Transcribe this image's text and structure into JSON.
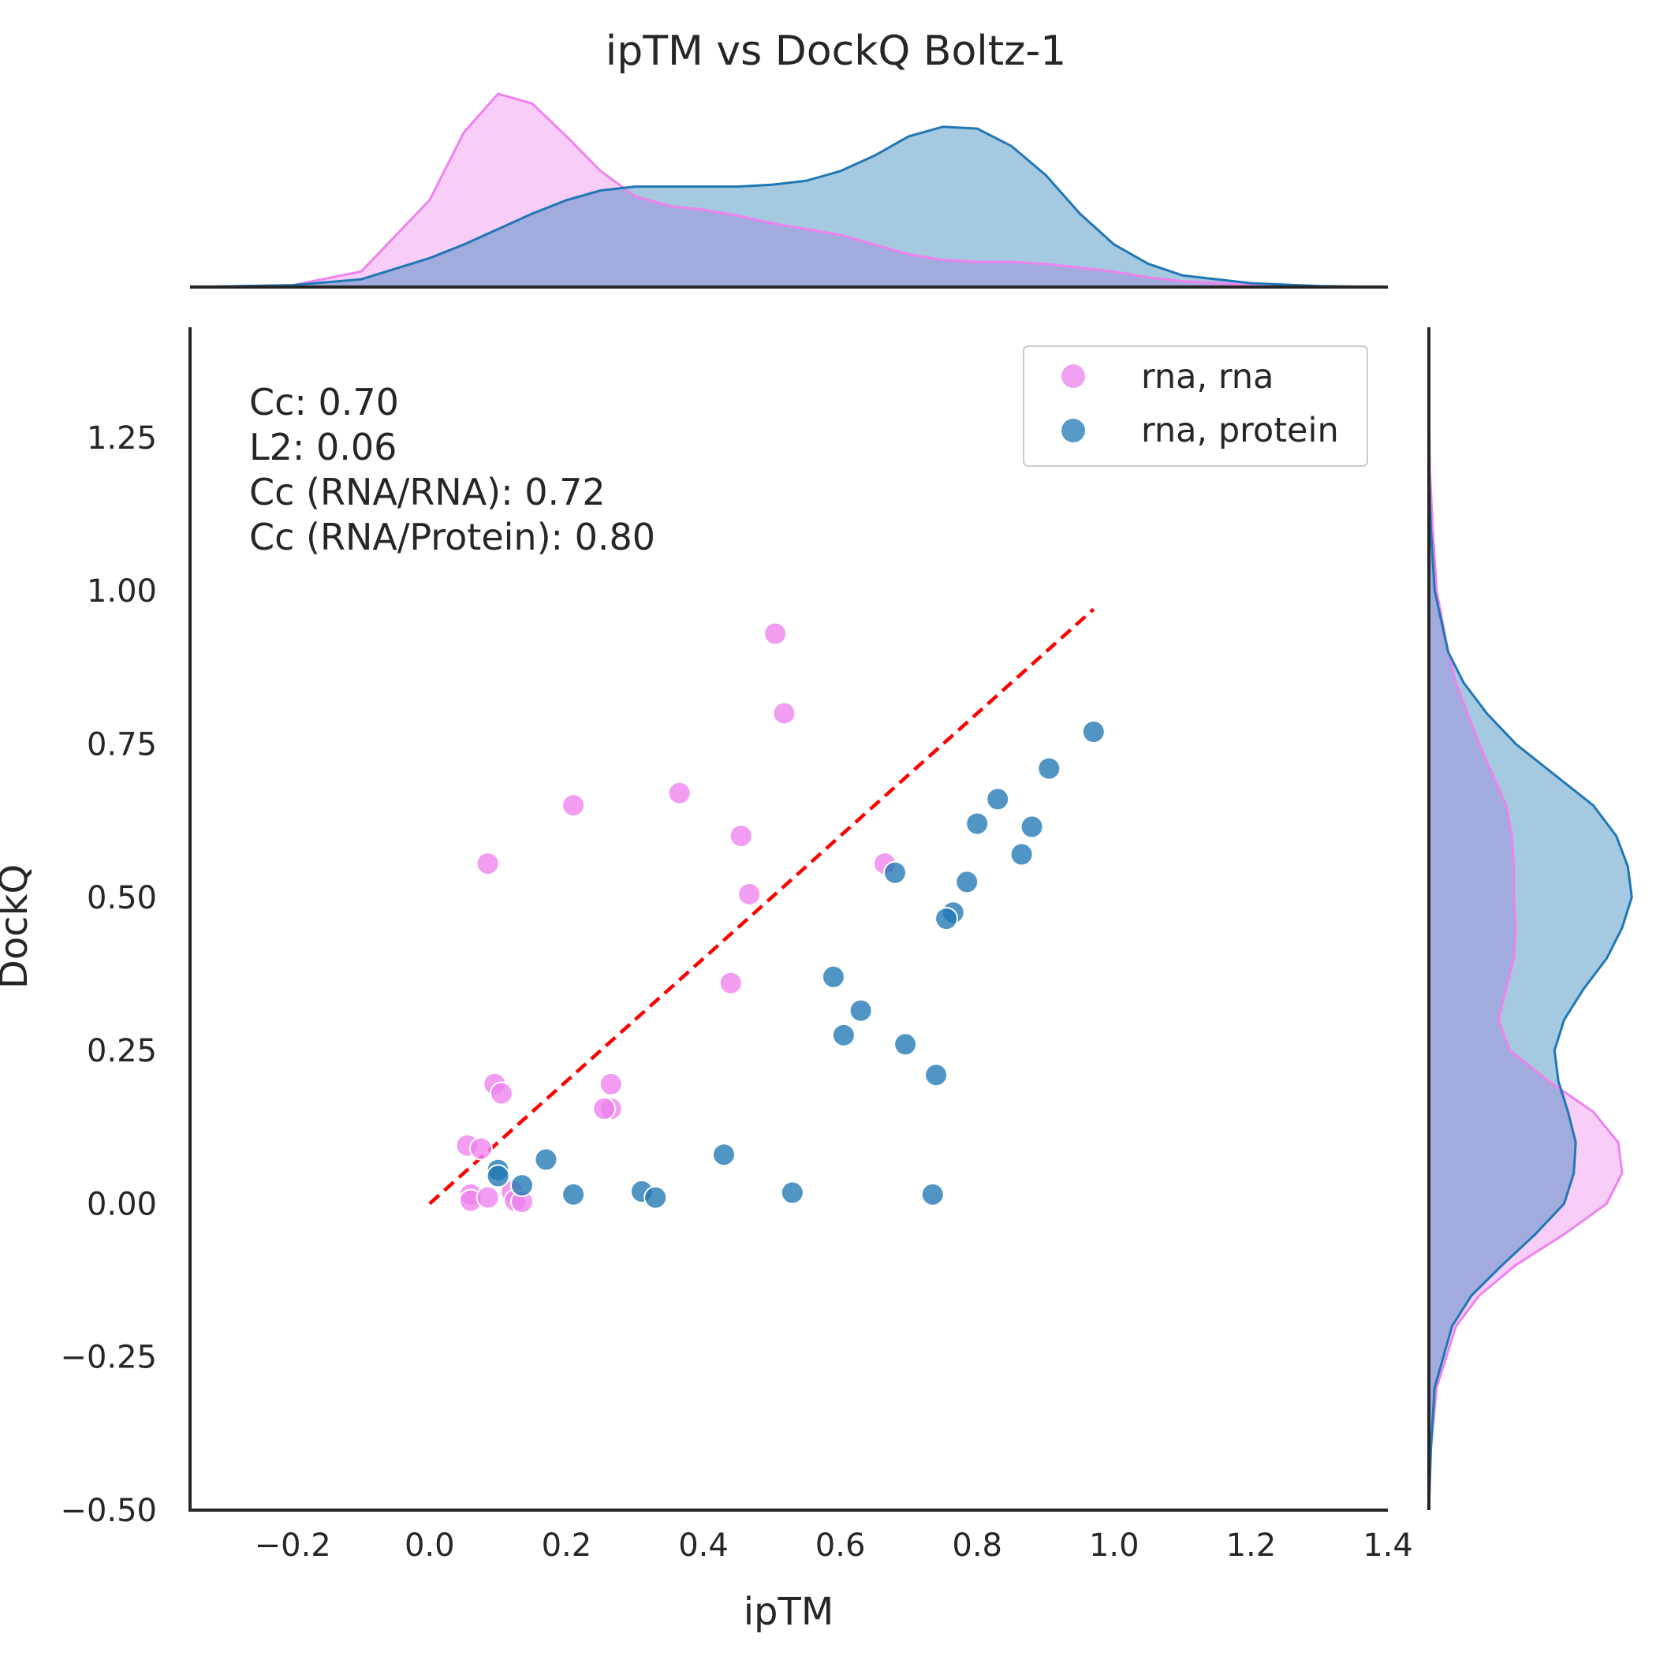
{
  "chart_data": {
    "type": "scatter",
    "title": "ipTM vs DockQ Boltz-1",
    "xlabel": "ipTM",
    "ylabel": "DockQ",
    "xlim": [
      -0.35,
      1.4
    ],
    "ylim": [
      -0.5,
      1.43
    ],
    "x_ticks": [
      {
        "value": -0.2,
        "label": "−0.2"
      },
      {
        "value": 0.0,
        "label": "0.0"
      },
      {
        "value": 0.2,
        "label": "0.2"
      },
      {
        "value": 0.4,
        "label": "0.4"
      },
      {
        "value": 0.6,
        "label": "0.6"
      },
      {
        "value": 0.8,
        "label": "0.8"
      },
      {
        "value": 1.0,
        "label": "1.0"
      },
      {
        "value": 1.2,
        "label": "1.2"
      },
      {
        "value": 1.4,
        "label": "1.4"
      }
    ],
    "y_ticks": [
      {
        "value": -0.5,
        "label": "−0.50"
      },
      {
        "value": -0.25,
        "label": "−0.25"
      },
      {
        "value": 0.0,
        "label": "0.00"
      },
      {
        "value": 0.25,
        "label": "0.25"
      },
      {
        "value": 0.5,
        "label": "0.50"
      },
      {
        "value": 0.75,
        "label": "0.75"
      },
      {
        "value": 1.0,
        "label": "1.00"
      },
      {
        "value": 1.25,
        "label": "1.25"
      }
    ],
    "grid": false,
    "legend_position": "top-right",
    "reference_line": {
      "x": [
        0.0,
        0.97
      ],
      "y": [
        0.0,
        0.97
      ],
      "style": "dashed",
      "color": "#ff0000"
    },
    "annotations": [
      "Cc: 0.70",
      "L2: 0.06",
      "Cc (RNA/RNA): 0.72",
      "Cc (RNA/Protein): 0.80"
    ],
    "series": [
      {
        "name": "rna, rna",
        "color": "#ee82ee",
        "points": [
          [
            0.505,
            0.93
          ],
          [
            0.518,
            0.8
          ],
          [
            0.365,
            0.67
          ],
          [
            0.21,
            0.65
          ],
          [
            0.085,
            0.555
          ],
          [
            0.455,
            0.6
          ],
          [
            0.665,
            0.555
          ],
          [
            0.467,
            0.505
          ],
          [
            0.44,
            0.36
          ],
          [
            0.095,
            0.195
          ],
          [
            0.105,
            0.18
          ],
          [
            0.265,
            0.195
          ],
          [
            0.265,
            0.155
          ],
          [
            0.255,
            0.155
          ],
          [
            0.055,
            0.095
          ],
          [
            0.075,
            0.09
          ],
          [
            0.06,
            0.015
          ],
          [
            0.06,
            0.005
          ],
          [
            0.085,
            0.01
          ],
          [
            0.12,
            0.02
          ],
          [
            0.125,
            0.005
          ],
          [
            0.135,
            0.003
          ]
        ]
      },
      {
        "name": "rna, protein",
        "color": "#1f77b4",
        "points": [
          [
            0.97,
            0.77
          ],
          [
            0.905,
            0.71
          ],
          [
            0.83,
            0.66
          ],
          [
            0.8,
            0.62
          ],
          [
            0.88,
            0.615
          ],
          [
            0.865,
            0.57
          ],
          [
            0.68,
            0.54
          ],
          [
            0.785,
            0.525
          ],
          [
            0.765,
            0.475
          ],
          [
            0.755,
            0.465
          ],
          [
            0.59,
            0.37
          ],
          [
            0.63,
            0.315
          ],
          [
            0.605,
            0.275
          ],
          [
            0.695,
            0.26
          ],
          [
            0.74,
            0.21
          ],
          [
            0.43,
            0.08
          ],
          [
            0.17,
            0.072
          ],
          [
            0.1,
            0.055
          ],
          [
            0.1,
            0.045
          ],
          [
            0.135,
            0.03
          ],
          [
            0.21,
            0.015
          ],
          [
            0.31,
            0.02
          ],
          [
            0.33,
            0.01
          ],
          [
            0.53,
            0.018
          ],
          [
            0.735,
            0.015
          ]
        ]
      }
    ],
    "marginal_x": {
      "grid": [
        -0.35,
        -0.2,
        -0.1,
        0.0,
        0.05,
        0.1,
        0.15,
        0.2,
        0.25,
        0.3,
        0.35,
        0.4,
        0.45,
        0.5,
        0.55,
        0.6,
        0.65,
        0.7,
        0.75,
        0.8,
        0.85,
        0.9,
        0.95,
        1.0,
        1.05,
        1.1,
        1.2,
        1.3,
        1.4
      ],
      "rna, rna": [
        0.0,
        0.01,
        0.08,
        0.45,
        0.8,
        1.0,
        0.95,
        0.78,
        0.6,
        0.47,
        0.42,
        0.4,
        0.37,
        0.33,
        0.3,
        0.27,
        0.22,
        0.17,
        0.14,
        0.13,
        0.13,
        0.12,
        0.1,
        0.08,
        0.05,
        0.03,
        0.01,
        0.0,
        0.0
      ],
      "rna, protein": [
        0.0,
        0.01,
        0.04,
        0.15,
        0.22,
        0.3,
        0.38,
        0.45,
        0.5,
        0.52,
        0.52,
        0.52,
        0.52,
        0.53,
        0.55,
        0.6,
        0.68,
        0.78,
        0.83,
        0.82,
        0.73,
        0.58,
        0.38,
        0.22,
        0.12,
        0.06,
        0.02,
        0.005,
        0.0
      ]
    },
    "marginal_y": {
      "grid": [
        -0.5,
        -0.4,
        -0.3,
        -0.2,
        -0.15,
        -0.1,
        -0.05,
        0.0,
        0.05,
        0.1,
        0.15,
        0.2,
        0.25,
        0.3,
        0.35,
        0.4,
        0.45,
        0.5,
        0.55,
        0.6,
        0.65,
        0.7,
        0.75,
        0.8,
        0.85,
        0.9,
        1.0,
        1.1,
        1.2,
        1.3,
        1.43
      ],
      "rna, rna": [
        0.0,
        0.01,
        0.04,
        0.14,
        0.26,
        0.45,
        0.7,
        0.92,
        1.0,
        0.98,
        0.85,
        0.62,
        0.42,
        0.36,
        0.4,
        0.44,
        0.45,
        0.44,
        0.44,
        0.43,
        0.4,
        0.33,
        0.26,
        0.2,
        0.14,
        0.1,
        0.04,
        0.02,
        0.005,
        0.0,
        0.0
      ],
      "rna, protein": [
        0.0,
        0.01,
        0.03,
        0.12,
        0.22,
        0.38,
        0.55,
        0.7,
        0.75,
        0.76,
        0.72,
        0.67,
        0.65,
        0.7,
        0.8,
        0.92,
        1.0,
        1.05,
        1.03,
        0.97,
        0.85,
        0.65,
        0.45,
        0.3,
        0.18,
        0.1,
        0.03,
        0.01,
        0.0,
        0.0,
        0.0
      ]
    }
  }
}
